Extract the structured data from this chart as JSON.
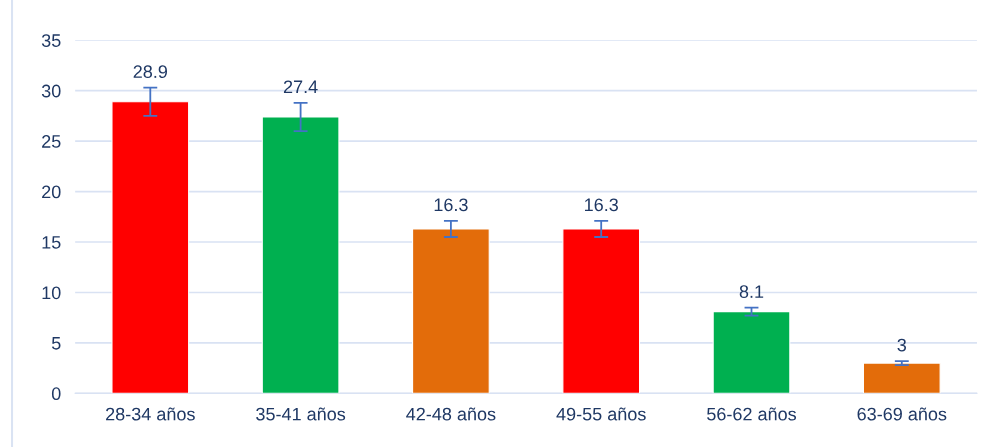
{
  "chart_data": {
    "type": "bar",
    "categories": [
      "28-34 años",
      "35-41 años",
      "42-48 años",
      "49-55 años",
      "56-62 años",
      "63-69 años"
    ],
    "values": [
      28.9,
      27.4,
      16.3,
      16.3,
      8.1,
      3
    ],
    "colors": [
      "#ff0000",
      "#00b050",
      "#e36c0a",
      "#ff0000",
      "#00b050",
      "#e36c0a"
    ],
    "errors": [
      1.4,
      1.4,
      0.8,
      0.8,
      0.4,
      0.2
    ],
    "ylim": [
      0,
      35
    ],
    "yticks": [
      0,
      5,
      10,
      15,
      20,
      25,
      30,
      35
    ],
    "grid": "y",
    "data_labels": true,
    "legend": false
  }
}
